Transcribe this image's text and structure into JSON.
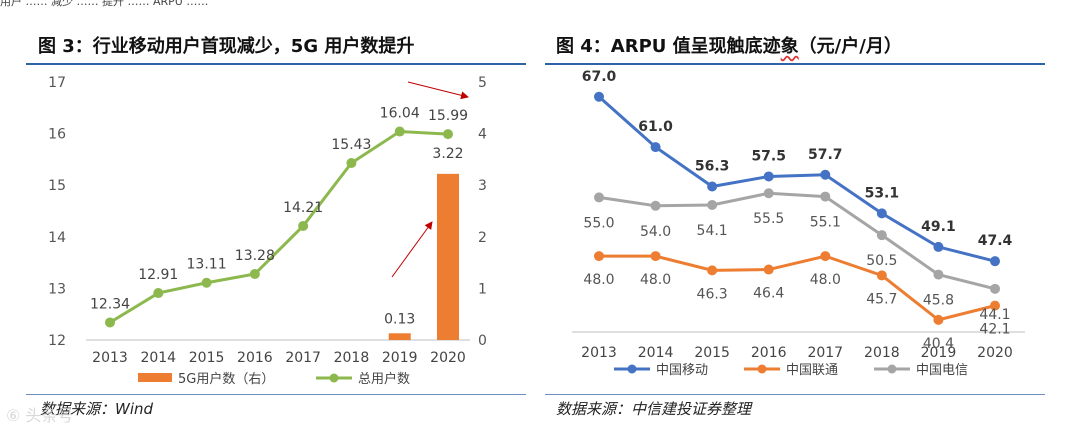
{
  "top_fragment": "用户 …… 减少 …… 提升 …… ARPU ……",
  "left": {
    "title": "图 3：行业移动用户首现减少，5G 用户数提升",
    "source": "数据来源：Wind",
    "chart_data": {
      "type": "bar+line",
      "categories": [
        "2013",
        "2014",
        "2015",
        "2016",
        "2017",
        "2018",
        "2019",
        "2020"
      ],
      "series": [
        {
          "name": "总用户数",
          "axis": "left",
          "type": "line",
          "color": "#8db84d",
          "values": [
            12.34,
            12.91,
            13.11,
            13.28,
            14.21,
            15.43,
            16.04,
            15.99
          ],
          "labels": [
            "12.34",
            "12.91",
            "13.11",
            "13.28",
            "14.21",
            "15.43",
            "16.04",
            "15.99"
          ]
        },
        {
          "name": "5G用户数（右）",
          "axis": "right",
          "type": "bar",
          "color": "#ed7d31",
          "values": [
            0,
            0,
            0,
            0,
            0,
            0,
            0.13,
            3.22
          ],
          "labels": [
            "",
            "",
            "",
            "",
            "",
            "",
            "0.13",
            "3.22"
          ]
        }
      ],
      "ylim_left": [
        12,
        17
      ],
      "yticks_left": [
        "12",
        "13",
        "14",
        "15",
        "16",
        "17"
      ],
      "ylim_right": [
        0,
        5
      ],
      "yticks_right": [
        "0",
        "1",
        "2",
        "3",
        "4",
        "5"
      ],
      "legend": [
        "5G用户数（右）",
        "总用户数"
      ]
    }
  },
  "right": {
    "title_main": "图 4：ARPU 值呈现触底迹",
    "title_wavy": "象",
    "title_unit": "（元/户/月）",
    "source": "数据来源：中信建投证券整理",
    "chart_data": {
      "type": "line",
      "categories": [
        "2013",
        "2014",
        "2015",
        "2016",
        "2017",
        "2018",
        "2019",
        "2020"
      ],
      "series": [
        {
          "name": "中国移动",
          "color": "#4472c4",
          "values": [
            67.0,
            61.0,
            56.3,
            57.5,
            57.7,
            53.1,
            49.1,
            47.4
          ],
          "labels": [
            "67.0",
            "61.0",
            "56.3",
            "57.5",
            "57.7",
            "53.1",
            "49.1",
            "47.4"
          ],
          "bold": true
        },
        {
          "name": "中国联通",
          "color": "#ed7d31",
          "values": [
            48.0,
            48.0,
            46.3,
            46.4,
            48.0,
            45.7,
            40.4,
            42.1
          ],
          "labels": [
            "48.0",
            "48.0",
            "46.3",
            "46.4",
            "48.0",
            "45.7",
            "40.4",
            "42.1"
          ],
          "bold": false
        },
        {
          "name": "中国电信",
          "color": "#a5a5a5",
          "values": [
            55.0,
            54.0,
            54.1,
            55.5,
            55.1,
            50.5,
            45.8,
            44.1
          ],
          "labels": [
            "55.0",
            "54.0",
            "54.1",
            "55.5",
            "55.1",
            "50.5",
            "45.8",
            "44.1"
          ],
          "bold": false
        }
      ],
      "ylim": [
        38,
        69
      ],
      "legend": [
        "中国移动",
        "中国联通",
        "中国电信"
      ]
    }
  },
  "watermark": "⑥ 头条号"
}
